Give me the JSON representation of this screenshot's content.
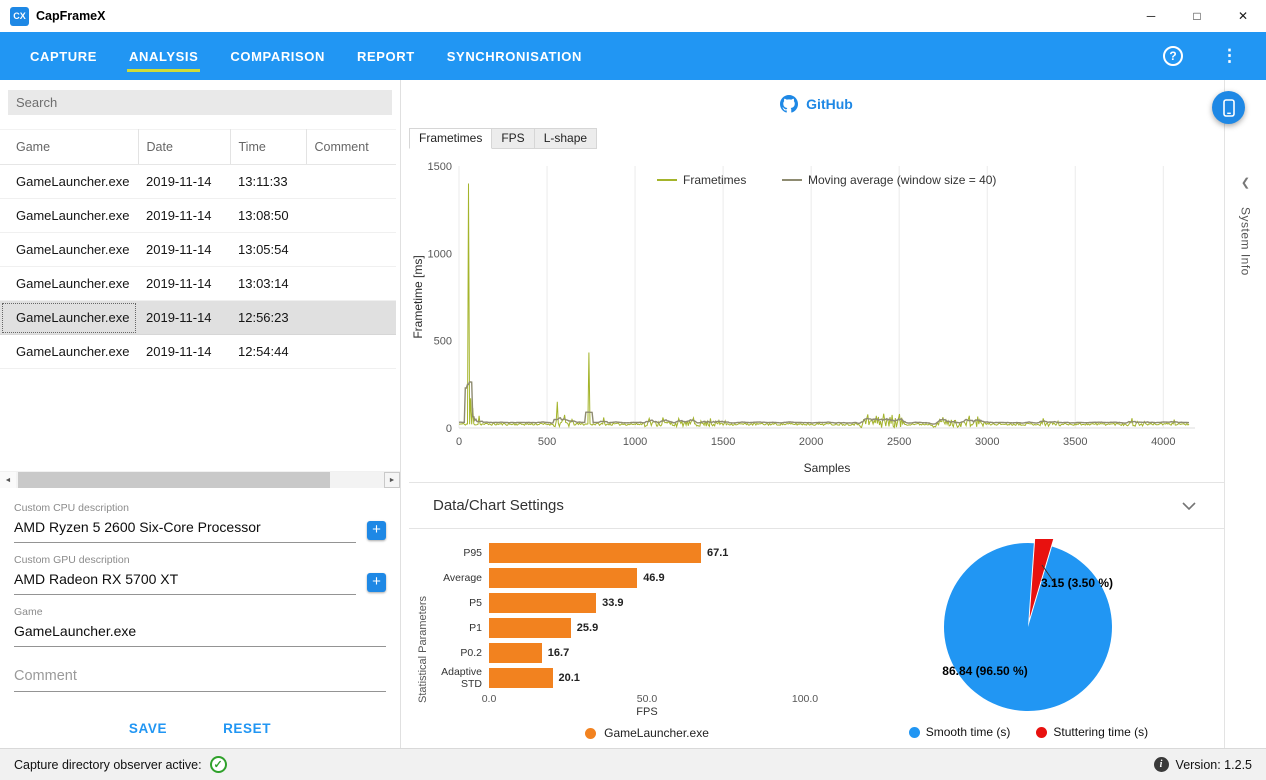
{
  "window": {
    "title": "CapFrameX",
    "logo_text": "CX",
    "controls": {
      "minimize": "─",
      "maximize": "□",
      "close": "✕"
    }
  },
  "nav": {
    "tabs": [
      {
        "label": "CAPTURE",
        "active": false
      },
      {
        "label": "ANALYSIS",
        "active": true
      },
      {
        "label": "COMPARISON",
        "active": false
      },
      {
        "label": "REPORT",
        "active": false
      },
      {
        "label": "SYNCHRONISATION",
        "active": false
      }
    ],
    "help_icon": "?",
    "menu_icon": "⋮"
  },
  "sidebar": {
    "search": {
      "value": "",
      "placeholder": "Search"
    },
    "table": {
      "columns": [
        "Game",
        "Date",
        "Time",
        "Comment"
      ],
      "rows": [
        {
          "game": "GameLauncher.exe",
          "date": "2019-11-14",
          "time": "13:11:33",
          "comment": "",
          "selected": false
        },
        {
          "game": "GameLauncher.exe",
          "date": "2019-11-14",
          "time": "13:08:50",
          "comment": "",
          "selected": false
        },
        {
          "game": "GameLauncher.exe",
          "date": "2019-11-14",
          "time": "13:05:54",
          "comment": "",
          "selected": false
        },
        {
          "game": "GameLauncher.exe",
          "date": "2019-11-14",
          "time": "13:03:14",
          "comment": "",
          "selected": false
        },
        {
          "game": "GameLauncher.exe",
          "date": "2019-11-14",
          "time": "12:56:23",
          "comment": "",
          "selected": true
        },
        {
          "game": "GameLauncher.exe",
          "date": "2019-11-14",
          "time": "12:54:44",
          "comment": "",
          "selected": false
        }
      ]
    },
    "fields": [
      {
        "id": "cpu",
        "label": "Custom CPU description",
        "value": "AMD Ryzen 5 2600 Six-Core Processor",
        "has_add": true
      },
      {
        "id": "gpu",
        "label": "Custom GPU description",
        "value": "AMD Radeon RX 5700 XT",
        "has_add": true
      },
      {
        "id": "game",
        "label": "Game",
        "value": "GameLauncher.exe",
        "has_add": false
      },
      {
        "id": "comment",
        "label": "Comment",
        "value": "",
        "placeholder": "Comment",
        "has_add": false
      }
    ],
    "buttons": {
      "save": "SAVE",
      "reset": "RESET"
    }
  },
  "main": {
    "github_label": "GitHub",
    "chart_tabs": [
      {
        "label": "Frametimes",
        "active": true
      },
      {
        "label": "FPS",
        "active": false
      },
      {
        "label": "L-shape",
        "active": false
      }
    ],
    "settings_title": "Data/Chart Settings",
    "system_info_label": "System Info"
  },
  "statusbar": {
    "observer_label": "Capture directory observer active:",
    "version": "Version: 1.2.5"
  },
  "icons": {
    "add": "+",
    "scroll_left": "◄",
    "scroll_right": "►",
    "collapse_left": "❮",
    "check": "✓",
    "info": "i"
  },
  "chart_data": [
    {
      "type": "line",
      "title": "Frametimes",
      "xlabel": "Samples",
      "ylabel": "Frametime [ms]",
      "xlim": [
        0,
        4180
      ],
      "ylim": [
        0,
        1500
      ],
      "xticks": [
        0,
        500,
        1000,
        1500,
        2000,
        2500,
        3000,
        3500,
        4000
      ],
      "yticks": [
        0,
        500,
        1000,
        1500
      ],
      "samples": 4150,
      "sample_step": 6,
      "seed": 11,
      "legend": [
        {
          "label": "Frametimes",
          "color": "#a4b42b"
        },
        {
          "label": "Moving average (window size = 40)",
          "color": "#8e8b71"
        }
      ],
      "series": [
        {
          "name": "Frametimes",
          "baseline_ms": 20,
          "noise_ms": 13,
          "noisy_regions": [
            [
              540,
              650,
              45
            ],
            [
              1040,
              1530,
              35
            ],
            [
              2280,
              2530,
              70
            ],
            [
              2680,
              2990,
              45
            ],
            [
              3290,
              3420,
              30
            ],
            [
              3760,
              3900,
              30
            ]
          ],
          "spikes": [
            [
              52,
              1400
            ],
            [
              66,
              170
            ],
            [
              80,
              115
            ],
            [
              116,
              70
            ],
            [
              556,
              150
            ],
            [
              600,
              75
            ],
            [
              736,
              432
            ],
            [
              820,
              60
            ],
            [
              1080,
              55
            ],
            [
              1160,
              60
            ],
            [
              1250,
              55
            ],
            [
              1330,
              58
            ],
            [
              1430,
              55
            ],
            [
              2320,
              78
            ],
            [
              2370,
              70
            ],
            [
              2410,
              82
            ],
            [
              2460,
              75
            ],
            [
              2500,
              80
            ],
            [
              2750,
              62
            ],
            [
              2900,
              70
            ],
            [
              2945,
              66
            ],
            [
              3320,
              55
            ],
            [
              3820,
              56
            ],
            [
              4060,
              48
            ]
          ]
        },
        {
          "name": "Moving average (window size = 40)",
          "window": 40,
          "offset_ms": 10
        }
      ]
    },
    {
      "type": "bar",
      "orientation": "horizontal",
      "categories": [
        "P95",
        "Average",
        "P5",
        "P1",
        "P0.2",
        "Adaptive STD"
      ],
      "values": [
        67.1,
        46.9,
        33.9,
        25.9,
        16.7,
        20.1
      ],
      "xlabel": "FPS",
      "ylabel": "Statistical Parameters",
      "xticks": [
        "0.0",
        "50.0",
        "100.0"
      ],
      "xlim": [
        0,
        100
      ],
      "bar_color": "#F2821F",
      "legend": [
        {
          "label": "GameLauncher.exe",
          "color": "#F2821F"
        }
      ]
    },
    {
      "type": "pie",
      "start_angle_deg": 16.6,
      "slices": [
        {
          "label": "Smooth time (s)",
          "seconds": 86.84,
          "percent": 96.5,
          "color": "#2196F3",
          "display": "86.84 (96.50 %)",
          "exploded": false
        },
        {
          "label": "Stuttering time (s)",
          "seconds": 3.15,
          "percent": 3.5,
          "color": "#E8110F",
          "display": "3.15 (3.50 %)",
          "exploded": true
        }
      ],
      "legend": [
        {
          "label": "Smooth time (s)",
          "color": "#2196F3"
        },
        {
          "label": "Stuttering time (s)",
          "color": "#E8110F"
        }
      ]
    }
  ]
}
